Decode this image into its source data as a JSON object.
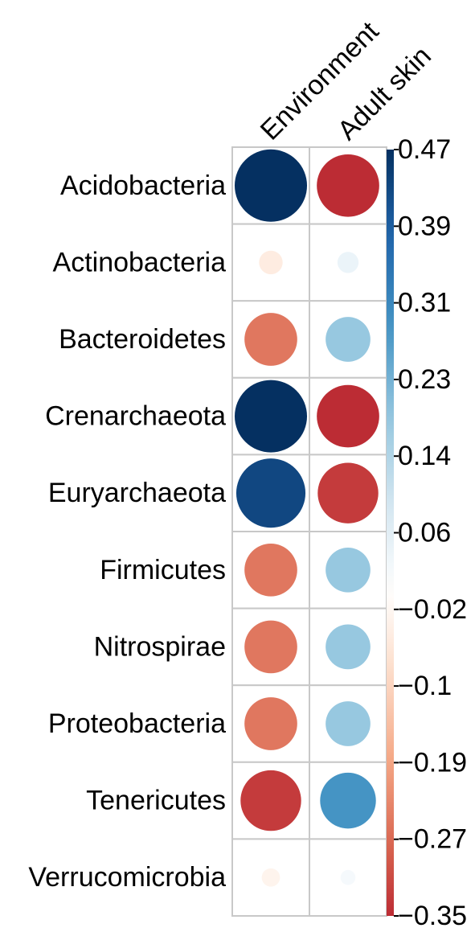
{
  "chart_data": {
    "type": "correlation-dot-matrix",
    "rows": [
      "Acidobacteria",
      "Actinobacteria",
      "Bacteroidetes",
      "Crenarchaeota",
      "Euryarchaeota",
      "Firmicutes",
      "Nitrospirae",
      "Proteobacteria",
      "Tenericutes",
      "Verrucomicrobia"
    ],
    "columns": [
      "Environment",
      "Adult skin"
    ],
    "values": [
      [
        0.47,
        -0.35
      ],
      [
        -0.05,
        0.04
      ],
      [
        -0.25,
        0.18
      ],
      [
        0.47,
        -0.35
      ],
      [
        0.43,
        -0.33
      ],
      [
        -0.25,
        0.18
      ],
      [
        -0.25,
        0.18
      ],
      [
        -0.25,
        0.18
      ],
      [
        -0.33,
        0.28
      ],
      [
        -0.03,
        0.02
      ]
    ],
    "colorbar": {
      "min": -0.35,
      "max": 0.47,
      "ticks": [
        "0.47",
        "0.39",
        "0.31",
        "0.23",
        "0.14",
        "0.06",
        "−0.02",
        "−0.1",
        "−0.19",
        "−0.27",
        "−0.35"
      ],
      "colors": [
        "#67001f",
        "#b2182b",
        "#d6604d",
        "#f4a582",
        "#fddbc7",
        "#ffffff",
        "#d1e5f0",
        "#92c5de",
        "#4393c3",
        "#2166ac",
        "#053061"
      ],
      "color_min": -0.47,
      "color_max": 0.47
    }
  }
}
